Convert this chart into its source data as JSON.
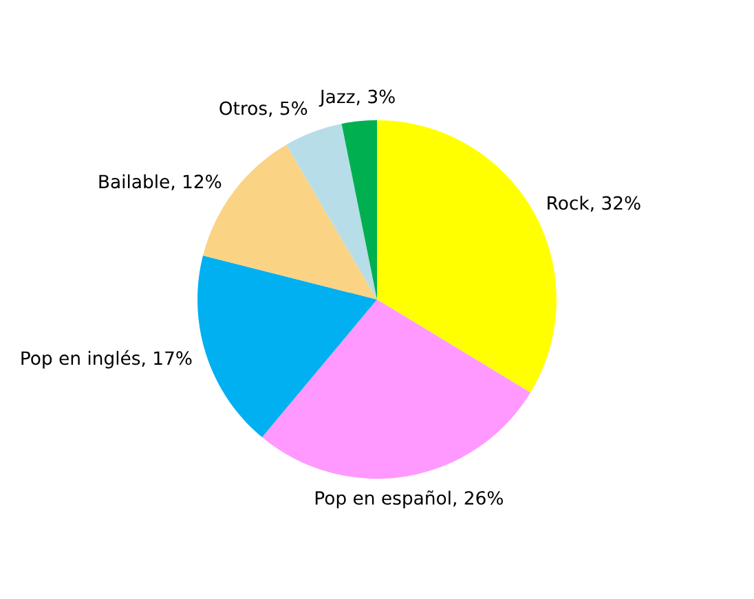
{
  "chart_data": {
    "type": "pie",
    "categories": [
      "Rock",
      "Pop en español",
      "Pop en inglés",
      "Bailable",
      "Otros",
      "Jazz"
    ],
    "values": [
      32,
      26,
      17,
      12,
      5,
      3
    ],
    "value_labels": [
      ", 32%",
      ", 26%",
      ", 17%",
      ", 12%",
      ", 5%",
      ", 3%"
    ],
    "colors": [
      "#ffff00",
      "#ff99ff",
      "#00b0f0",
      "#fad384",
      "#b7dde8",
      "#00b050"
    ]
  }
}
